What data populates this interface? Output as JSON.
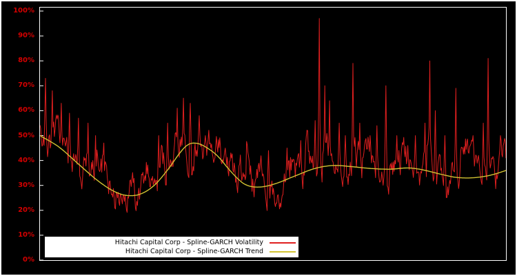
{
  "chart_data": {
    "type": "line",
    "title": "",
    "background": "#000000",
    "frame_color": "#ffffff",
    "axis_label_color": "#d40000",
    "ylim": [
      0,
      100
    ],
    "y_ticks": [
      "0%",
      "10%",
      "20%",
      "30%",
      "40%",
      "50%",
      "60%",
      "70%",
      "80%",
      "90%",
      "100%"
    ],
    "x_axis": {
      "labels_visible": false
    },
    "grid": "off",
    "legend": {
      "position": "bottom-left-inside",
      "background": "#ffffff",
      "text_color": "#000000"
    },
    "series": [
      {
        "name": "Hitachi Capital Corp - Spline-GARCH Volatility",
        "color": "#e01f1f",
        "style": "noisy",
        "points": 680,
        "noise": {
          "seed": 20170517,
          "persistence": 0.8,
          "amplitude": 5.5,
          "spike_chance": 0.055,
          "spike_scale": 11,
          "floor": 19
        },
        "spikes": [
          [
            0.012,
            73
          ],
          [
            0.027,
            68
          ],
          [
            0.046,
            63
          ],
          [
            0.063,
            59
          ],
          [
            0.083,
            57
          ],
          [
            0.103,
            55
          ],
          [
            0.12,
            50
          ],
          [
            0.137,
            47
          ],
          [
            0.255,
            50
          ],
          [
            0.274,
            55
          ],
          [
            0.295,
            61
          ],
          [
            0.308,
            65
          ],
          [
            0.323,
            63
          ],
          [
            0.341,
            58
          ],
          [
            0.355,
            50
          ],
          [
            0.43,
            42
          ],
          [
            0.491,
            44
          ],
          [
            0.53,
            45
          ],
          [
            0.56,
            48
          ],
          [
            0.575,
            52
          ],
          [
            0.591,
            56
          ],
          [
            0.599,
            97
          ],
          [
            0.611,
            70
          ],
          [
            0.622,
            64
          ],
          [
            0.642,
            55
          ],
          [
            0.656,
            50
          ],
          [
            0.671,
            79
          ],
          [
            0.687,
            55
          ],
          [
            0.708,
            50
          ],
          [
            0.723,
            54
          ],
          [
            0.743,
            70
          ],
          [
            0.766,
            50
          ],
          [
            0.789,
            46
          ],
          [
            0.805,
            50
          ],
          [
            0.826,
            55
          ],
          [
            0.836,
            80
          ],
          [
            0.848,
            60
          ],
          [
            0.869,
            50
          ],
          [
            0.892,
            69
          ],
          [
            0.907,
            45
          ],
          [
            0.929,
            50
          ],
          [
            0.951,
            55
          ],
          [
            0.962,
            81
          ],
          [
            0.988,
            50
          ]
        ]
      },
      {
        "name": "Hitachi Capital Corp - Spline-GARCH Trend",
        "color": "#d2c332",
        "style": "smooth",
        "knots": [
          [
            0,
            50
          ],
          [
            0.04,
            45.5
          ],
          [
            0.08,
            39
          ],
          [
            0.12,
            32.5
          ],
          [
            0.155,
            28
          ],
          [
            0.185,
            26
          ],
          [
            0.215,
            26.5
          ],
          [
            0.245,
            30
          ],
          [
            0.275,
            36.5
          ],
          [
            0.3,
            43
          ],
          [
            0.315,
            46
          ],
          [
            0.33,
            47
          ],
          [
            0.35,
            46
          ],
          [
            0.38,
            42
          ],
          [
            0.41,
            35.5
          ],
          [
            0.435,
            31
          ],
          [
            0.455,
            29.5
          ],
          [
            0.48,
            29.5
          ],
          [
            0.51,
            31
          ],
          [
            0.55,
            34
          ],
          [
            0.59,
            36.8
          ],
          [
            0.63,
            38
          ],
          [
            0.67,
            37.5
          ],
          [
            0.71,
            36.8
          ],
          [
            0.75,
            36.5
          ],
          [
            0.79,
            37
          ],
          [
            0.82,
            36.3
          ],
          [
            0.86,
            34.5
          ],
          [
            0.89,
            33.3
          ],
          [
            0.92,
            33
          ],
          [
            0.95,
            33.5
          ],
          [
            0.975,
            34.5
          ],
          [
            1,
            36
          ]
        ]
      }
    ]
  }
}
